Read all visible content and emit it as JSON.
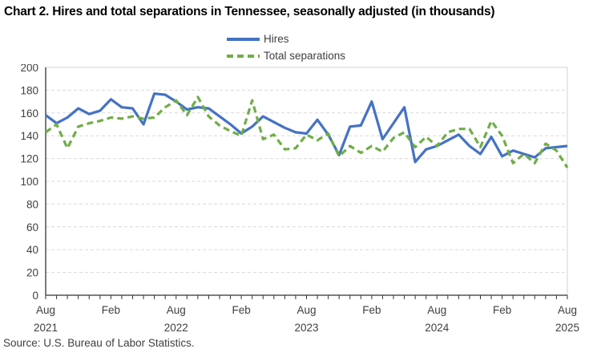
{
  "title": "Chart 2. Hires and total separations in Tennessee, seasonally adjusted (in thousands)",
  "source": "Source: U.S. Bureau of Labor Statistics.",
  "colors": {
    "hires": "#4472C4",
    "separations": "#70AD47",
    "grid": "#D9D9D9",
    "axis": "#333333",
    "tick_label": "#404040"
  },
  "chart_data": {
    "type": "line",
    "title": "Chart 2. Hires and total separations in Tennessee, seasonally adjusted (in thousands)",
    "xlabel": "",
    "ylabel": "",
    "ylim": [
      0,
      200
    ],
    "ytick_step": 20,
    "grid": true,
    "legend_position": "top-center",
    "months": [
      "Aug 2021",
      "Sep 2021",
      "Oct 2021",
      "Nov 2021",
      "Dec 2021",
      "Jan 2022",
      "Feb 2022",
      "Mar 2022",
      "Apr 2022",
      "May 2022",
      "Jun 2022",
      "Jul 2022",
      "Aug 2022",
      "Sep 2022",
      "Oct 2022",
      "Nov 2022",
      "Dec 2022",
      "Jan 2023",
      "Feb 2023",
      "Mar 2023",
      "Apr 2023",
      "May 2023",
      "Jun 2023",
      "Jul 2023",
      "Aug 2023",
      "Sep 2023",
      "Oct 2023",
      "Nov 2023",
      "Dec 2023",
      "Jan 2024",
      "Feb 2024",
      "Mar 2024",
      "Apr 2024",
      "May 2024",
      "Jun 2024",
      "Jul 2024",
      "Aug 2024",
      "Sep 2024",
      "Oct 2024",
      "Nov 2024",
      "Dec 2024",
      "Jan 2025",
      "Feb 2025",
      "Mar 2025",
      "Apr 2025",
      "May 2025",
      "Jun 2025",
      "Jul 2025",
      "Aug 2025"
    ],
    "series": [
      {
        "name": "Hires",
        "color": "#4472C4",
        "style": "solid",
        "values": [
          158,
          151,
          156,
          164,
          159,
          162,
          172,
          165,
          164,
          150,
          177,
          176,
          170,
          163,
          165,
          164,
          157,
          150,
          142,
          148,
          157,
          152,
          147,
          143,
          142,
          154,
          141,
          123,
          148,
          149,
          170,
          137,
          151,
          165,
          117,
          128,
          131,
          136,
          141,
          131,
          124,
          139,
          122,
          127,
          124,
          121,
          129,
          130,
          131
        ]
      },
      {
        "name": "Total separations",
        "color": "#70AD47",
        "style": "dashed",
        "values": [
          143,
          150,
          129,
          148,
          151,
          153,
          156,
          155,
          157,
          155,
          156,
          165,
          171,
          158,
          174,
          157,
          149,
          144,
          140,
          171,
          137,
          141,
          128,
          129,
          141,
          136,
          142,
          122,
          131,
          125,
          131,
          126,
          138,
          143,
          130,
          139,
          131,
          143,
          146,
          146,
          130,
          153,
          140,
          116,
          124,
          116,
          133,
          127,
          112
        ]
      }
    ],
    "xticks": [
      {
        "index": 0,
        "label": "Aug",
        "year": "2021"
      },
      {
        "index": 6,
        "label": "Feb",
        "year": ""
      },
      {
        "index": 12,
        "label": "Aug",
        "year": "2022"
      },
      {
        "index": 18,
        "label": "Feb",
        "year": ""
      },
      {
        "index": 24,
        "label": "Aug",
        "year": "2023"
      },
      {
        "index": 30,
        "label": "Feb",
        "year": ""
      },
      {
        "index": 36,
        "label": "Aug",
        "year": "2024"
      },
      {
        "index": 42,
        "label": "Feb",
        "year": ""
      },
      {
        "index": 48,
        "label": "Aug",
        "year": "2025"
      }
    ]
  }
}
